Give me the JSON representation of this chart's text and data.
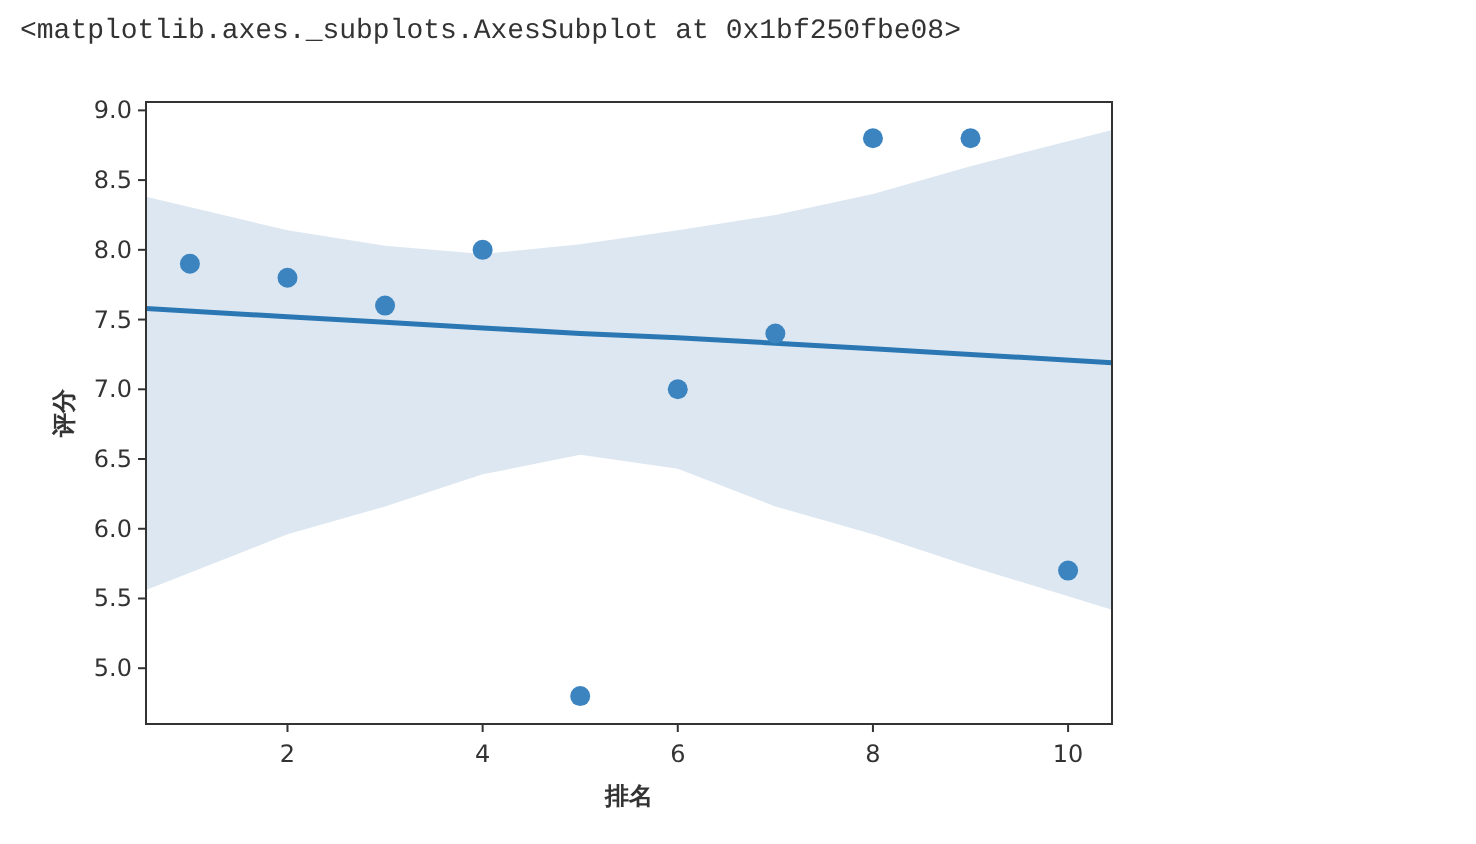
{
  "chart_data": {
    "type": "scatter",
    "annotations": [
      "<matplotlib.axes._subplots.AxesSubplot at 0x1bf250fbe08>"
    ],
    "xlabel": "排名",
    "ylabel": "评分",
    "xlim": [
      0.55,
      10.45
    ],
    "ylim": [
      4.6,
      9.06
    ],
    "xticks": [
      2,
      4,
      6,
      8,
      10
    ],
    "yticks": [
      {
        "value": 5,
        "label": "5.0"
      },
      5.5,
      {
        "value": 6,
        "label": "6.0"
      },
      6.5,
      {
        "value": 7,
        "label": "7.0"
      },
      7.5,
      {
        "value": 8,
        "label": "8.0"
      },
      8.5,
      {
        "value": 9,
        "label": "9.0"
      }
    ],
    "grid": false,
    "series": [
      {
        "marker": "circle",
        "color": "#3b84bf",
        "x": [
          1,
          2,
          3,
          4,
          5,
          6,
          7,
          8,
          9,
          10
        ],
        "values": [
          7.9,
          7.8,
          7.6,
          8.0,
          4.8,
          7.0,
          7.4,
          8.8,
          8.8,
          5.7
        ]
      },
      {
        "type": "line",
        "color": "#2a77b4",
        "x": [
          0.55,
          2,
          3,
          4,
          5,
          6,
          7,
          8,
          9,
          10.45
        ],
        "values": [
          7.58,
          7.52,
          7.48,
          7.44,
          7.4,
          7.37,
          7.33,
          7.29,
          7.25,
          7.19
        ],
        "lower": [
          5.56,
          5.96,
          6.16,
          6.39,
          6.53,
          6.43,
          6.16,
          5.96,
          5.73,
          5.42
        ],
        "upper": [
          8.38,
          8.14,
          8.03,
          7.97,
          8.04,
          8.14,
          8.25,
          8.4,
          8.6,
          8.86
        ]
      }
    ]
  }
}
